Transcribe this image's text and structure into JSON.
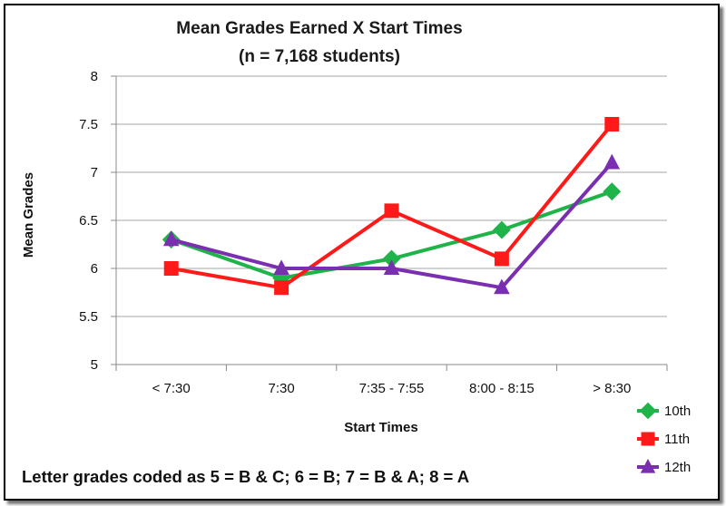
{
  "chart_data": {
    "type": "line",
    "title": "Mean Grades Earned X Start Times",
    "subtitle": "(n = 7,168 students)",
    "xlabel": "Start Times",
    "ylabel": "Mean Grades",
    "categories": [
      "< 7:30",
      "7:30",
      "7:35 - 7:55",
      "8:00 - 8:15",
      "> 8:30"
    ],
    "ylim": [
      5,
      8
    ],
    "yticks": [
      "5",
      "5.5",
      "6",
      "6.5",
      "7",
      "7.5",
      "8"
    ],
    "grid": true,
    "legend_position": "bottom-right",
    "series": [
      {
        "name": "10th",
        "color": "#1fb34a",
        "marker": "diamond",
        "values": [
          6.3,
          5.9,
          6.1,
          6.4,
          6.8
        ]
      },
      {
        "name": "11th",
        "color": "#ff1a1a",
        "marker": "square",
        "values": [
          6.0,
          5.8,
          6.6,
          6.1,
          7.5
        ]
      },
      {
        "name": "12th",
        "color": "#7a2fb0",
        "marker": "triangle",
        "values": [
          6.3,
          6.0,
          6.0,
          5.8,
          7.1
        ]
      }
    ],
    "footnote": "Letter grades coded as 5 = B & C;   6 = B;  7 = B & A;  8 = A"
  }
}
